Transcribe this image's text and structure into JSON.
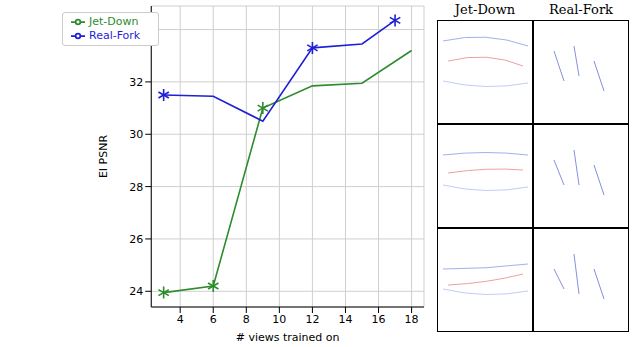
{
  "chart_data": {
    "type": "line",
    "x_label": "# views trained on",
    "y_label": "EI PSNR",
    "xlim": [
      2.25,
      18.75
    ],
    "xticks": [
      4,
      6,
      8,
      10,
      12,
      14,
      16,
      18
    ],
    "ylim": [
      23.4,
      34.9
    ],
    "yticks": [
      24,
      26,
      28,
      30,
      32,
      34
    ],
    "grid": true,
    "legend": "upper left",
    "series": [
      {
        "name": "Jet-Down",
        "color": "#2e8b2e",
        "marker": "star",
        "x": [
          3,
          6,
          9,
          12,
          15,
          18
        ],
        "values": [
          23.95,
          24.2,
          31.0,
          31.85,
          31.95,
          33.2
        ],
        "marked": [
          true,
          true,
          true,
          false,
          false,
          false
        ]
      },
      {
        "name": "Real-Fork",
        "color": "#1f1fd6",
        "marker": "star",
        "x": [
          3,
          6,
          9,
          12,
          15,
          17
        ],
        "values": [
          31.5,
          31.45,
          30.5,
          33.3,
          33.45,
          34.35
        ],
        "marked": [
          true,
          false,
          false,
          true,
          false,
          true
        ]
      }
    ]
  },
  "image_grid": {
    "column_titles": [
      "Jet-Down",
      "Real-Fork"
    ],
    "rows": 3
  }
}
